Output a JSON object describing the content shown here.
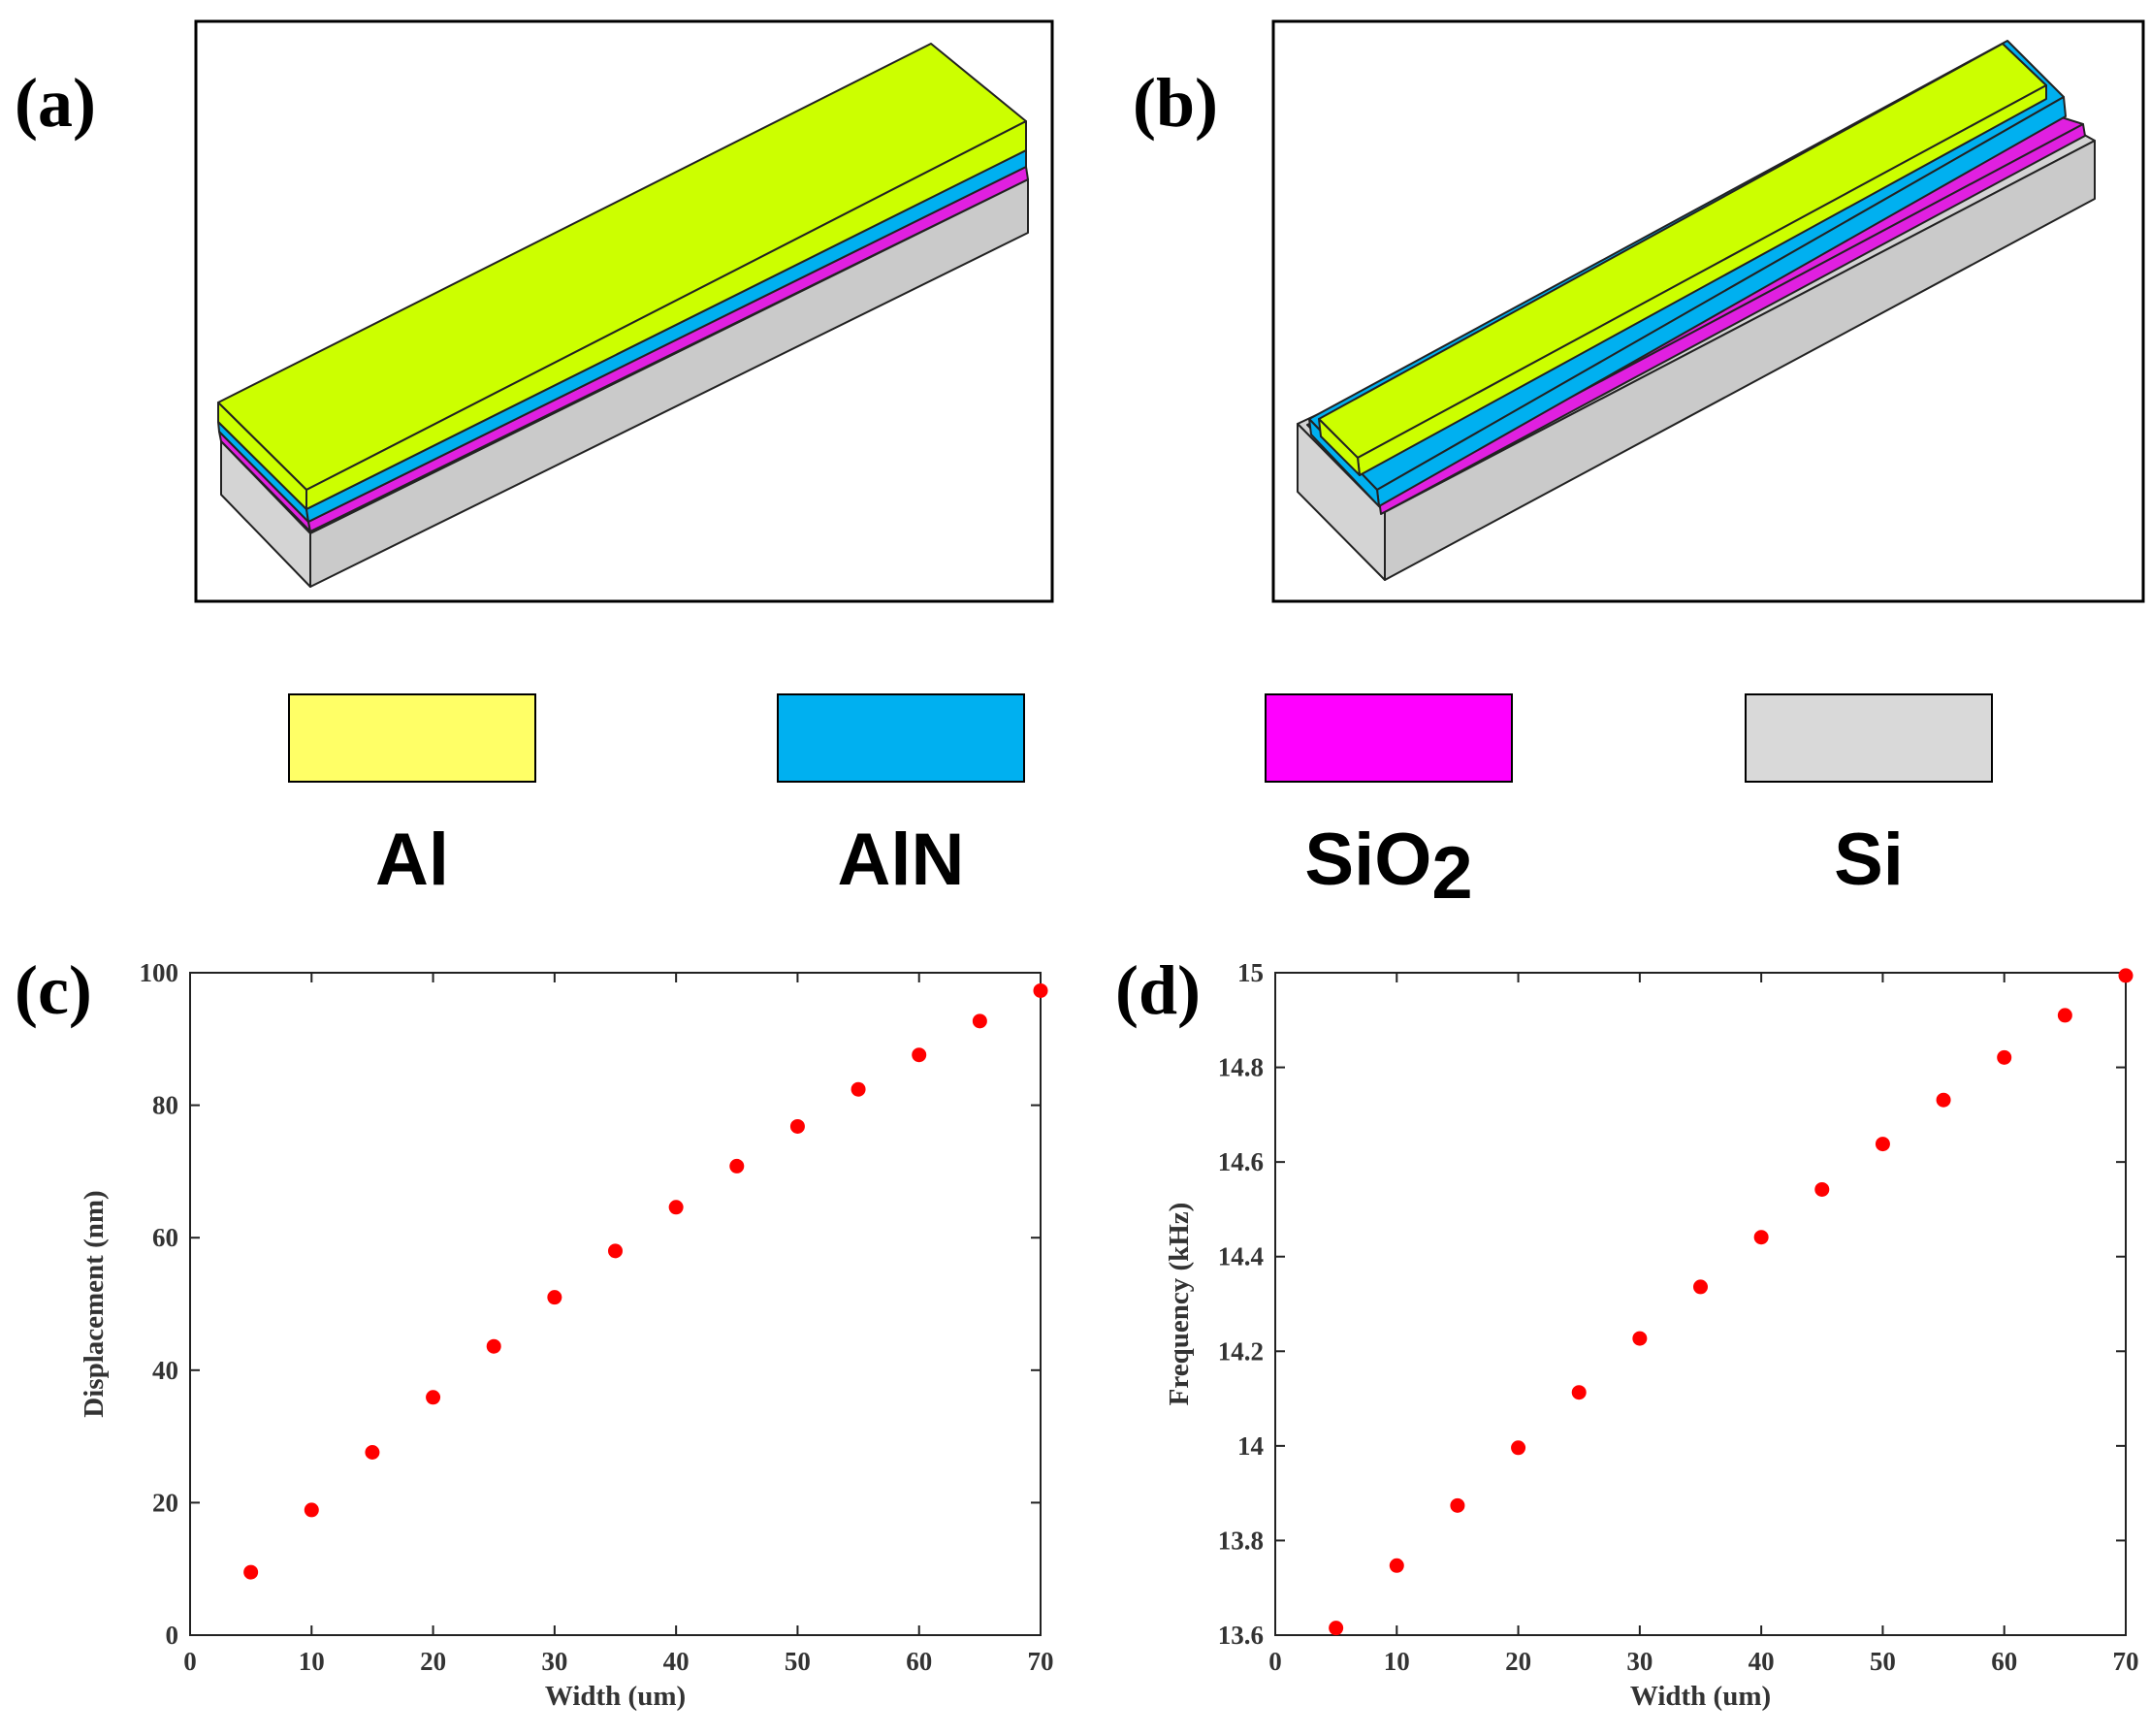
{
  "panels": {
    "a": {
      "label": "(a)"
    },
    "b": {
      "label": "(b)"
    },
    "c": {
      "label": "(c)"
    },
    "d": {
      "label": "(d)"
    }
  },
  "legend": {
    "items": [
      {
        "label": "Al",
        "color": "#ffff66"
      },
      {
        "label": "AlN",
        "color": "#00b0f0"
      },
      {
        "label": "SiO",
        "sub": "2",
        "color": "#ff00ff"
      },
      {
        "label": "Si",
        "color": "#d9d9d9"
      }
    ]
  },
  "colors": {
    "al_3d": "#ccff00",
    "aln_3d": "#00b0f0",
    "sio2_3d": "#e020e0",
    "si_3d": "#d4d4d4",
    "marker": "#ff0000"
  },
  "chart_data": [
    {
      "type": "scatter",
      "panel": "(c)",
      "title": "",
      "xlabel": "Width (um)",
      "ylabel": "Displacement (nm)",
      "xlim": [
        0,
        70
      ],
      "ylim": [
        0,
        100
      ],
      "xticks": [
        0,
        10,
        20,
        30,
        40,
        50,
        60,
        70
      ],
      "yticks": [
        0,
        20,
        40,
        60,
        80,
        100
      ],
      "x": [
        5,
        10,
        15,
        20,
        25,
        30,
        35,
        40,
        45,
        50,
        55,
        60,
        65,
        70
      ],
      "y": [
        9.5,
        18.9,
        27.6,
        35.9,
        43.6,
        51.0,
        58.0,
        64.6,
        70.8,
        76.8,
        82.4,
        87.6,
        92.7,
        97.3
      ]
    },
    {
      "type": "scatter",
      "panel": "(d)",
      "title": "",
      "xlabel": "Width (um)",
      "ylabel": "Frequency (kHz)",
      "xlim": [
        0,
        70
      ],
      "ylim": [
        13.6,
        15
      ],
      "xticks": [
        0,
        10,
        20,
        30,
        40,
        50,
        60,
        70
      ],
      "yticks": [
        13.6,
        13.8,
        14,
        14.2,
        14.4,
        14.6,
        14.8,
        15
      ],
      "ytick_labels": [
        "13.6",
        "13.8",
        "14",
        "14.2",
        "14.4",
        "14.6",
        "14.8",
        "15"
      ],
      "x": [
        5,
        10,
        15,
        20,
        25,
        30,
        35,
        40,
        45,
        50,
        55,
        60,
        65,
        70
      ],
      "y": [
        13.615,
        13.747,
        13.874,
        13.996,
        14.113,
        14.227,
        14.336,
        14.441,
        14.542,
        14.638,
        14.731,
        14.821,
        14.91,
        14.994
      ]
    }
  ]
}
